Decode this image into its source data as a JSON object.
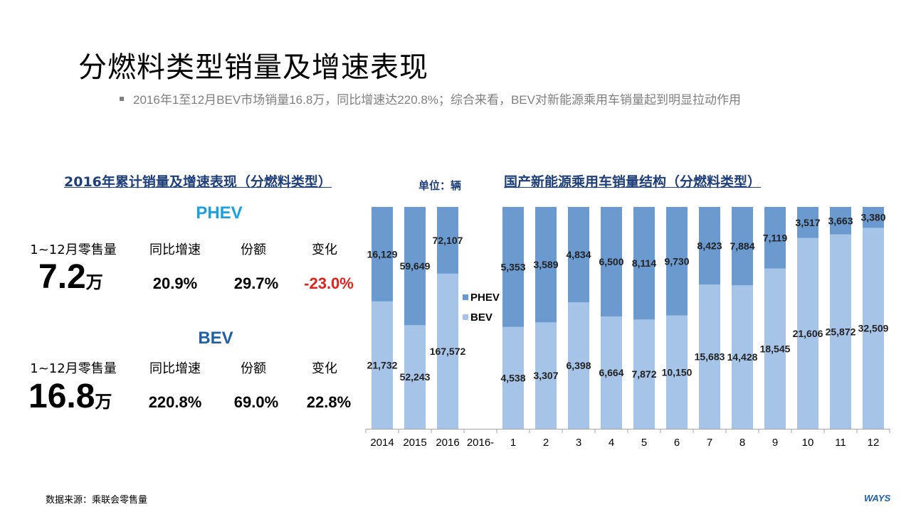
{
  "title": "分燃料类型销量及增速表现",
  "bullet": "2016年1至12月BEV市场销量16.8万，同比增速达220.8%；综合来看，BEV对新能源乘用车销量起到明显拉动作用",
  "left_panel": {
    "heading": "2016年累计销量及增速表现（分燃料类型）",
    "blocks": [
      {
        "name": "PHEV",
        "color": "#1ba1e2",
        "labels": [
          "1~12月零售量",
          "同比增速",
          "份额",
          "变化"
        ],
        "volume": "7.2",
        "volume_unit": "万",
        "growth": "20.9%",
        "share": "29.7%",
        "change": "-23.0%",
        "change_color": "#e3201b"
      },
      {
        "name": "BEV",
        "color": "#1f5fa6",
        "labels": [
          "1~12月零售量",
          "同比增速",
          "份额",
          "变化"
        ],
        "volume": "16.8",
        "volume_unit": "万",
        "growth": "220.8%",
        "share": "69.0%",
        "change": "22.8%",
        "change_color": "#000000"
      }
    ]
  },
  "unit_label": "单位：辆",
  "right_heading": "国产新能源乘用车销量结构（分燃料类型）",
  "chart_data": {
    "type": "bar",
    "stacked": "percent",
    "categories": [
      "2014",
      "2015",
      "2016",
      "2016-",
      "1",
      "2",
      "3",
      "4",
      "5",
      "6",
      "7",
      "8",
      "9",
      "10",
      "11",
      "12"
    ],
    "series": [
      {
        "name": "BEV",
        "color": "#a6c4e8",
        "values": [
          21732,
          52243,
          167572,
          null,
          4538,
          3307,
          6398,
          6664,
          7872,
          10150,
          15683,
          14428,
          18545,
          21606,
          25872,
          32509
        ]
      },
      {
        "name": "PHEV",
        "color": "#6b9ad0",
        "values": [
          16129,
          59649,
          72107,
          null,
          5353,
          3589,
          4834,
          6500,
          8114,
          9730,
          8423,
          7884,
          7119,
          3517,
          3663,
          3380
        ]
      }
    ],
    "bev_labels": [
      "21,732",
      "52,243",
      "167,572",
      "",
      "4,538",
      "3,307",
      "6,398",
      "6,664",
      "7,872",
      "10,150",
      "15,683",
      "14,428",
      "18,545",
      "21,606",
      "25,872",
      "32,509"
    ],
    "phev_labels": [
      "16,129",
      "59,649",
      "72,107",
      "",
      "5,353",
      "3,589",
      "4,834",
      "6,500",
      "8,114",
      "9,730",
      "8,423",
      "7,884",
      "7,119",
      "3,517",
      "3,663",
      "3,380"
    ],
    "legend": [
      "PHEV",
      "BEV"
    ],
    "legend_position": "middle, in gap column"
  },
  "source": "数据来源：乘联会零售量",
  "logo": "WAYS"
}
